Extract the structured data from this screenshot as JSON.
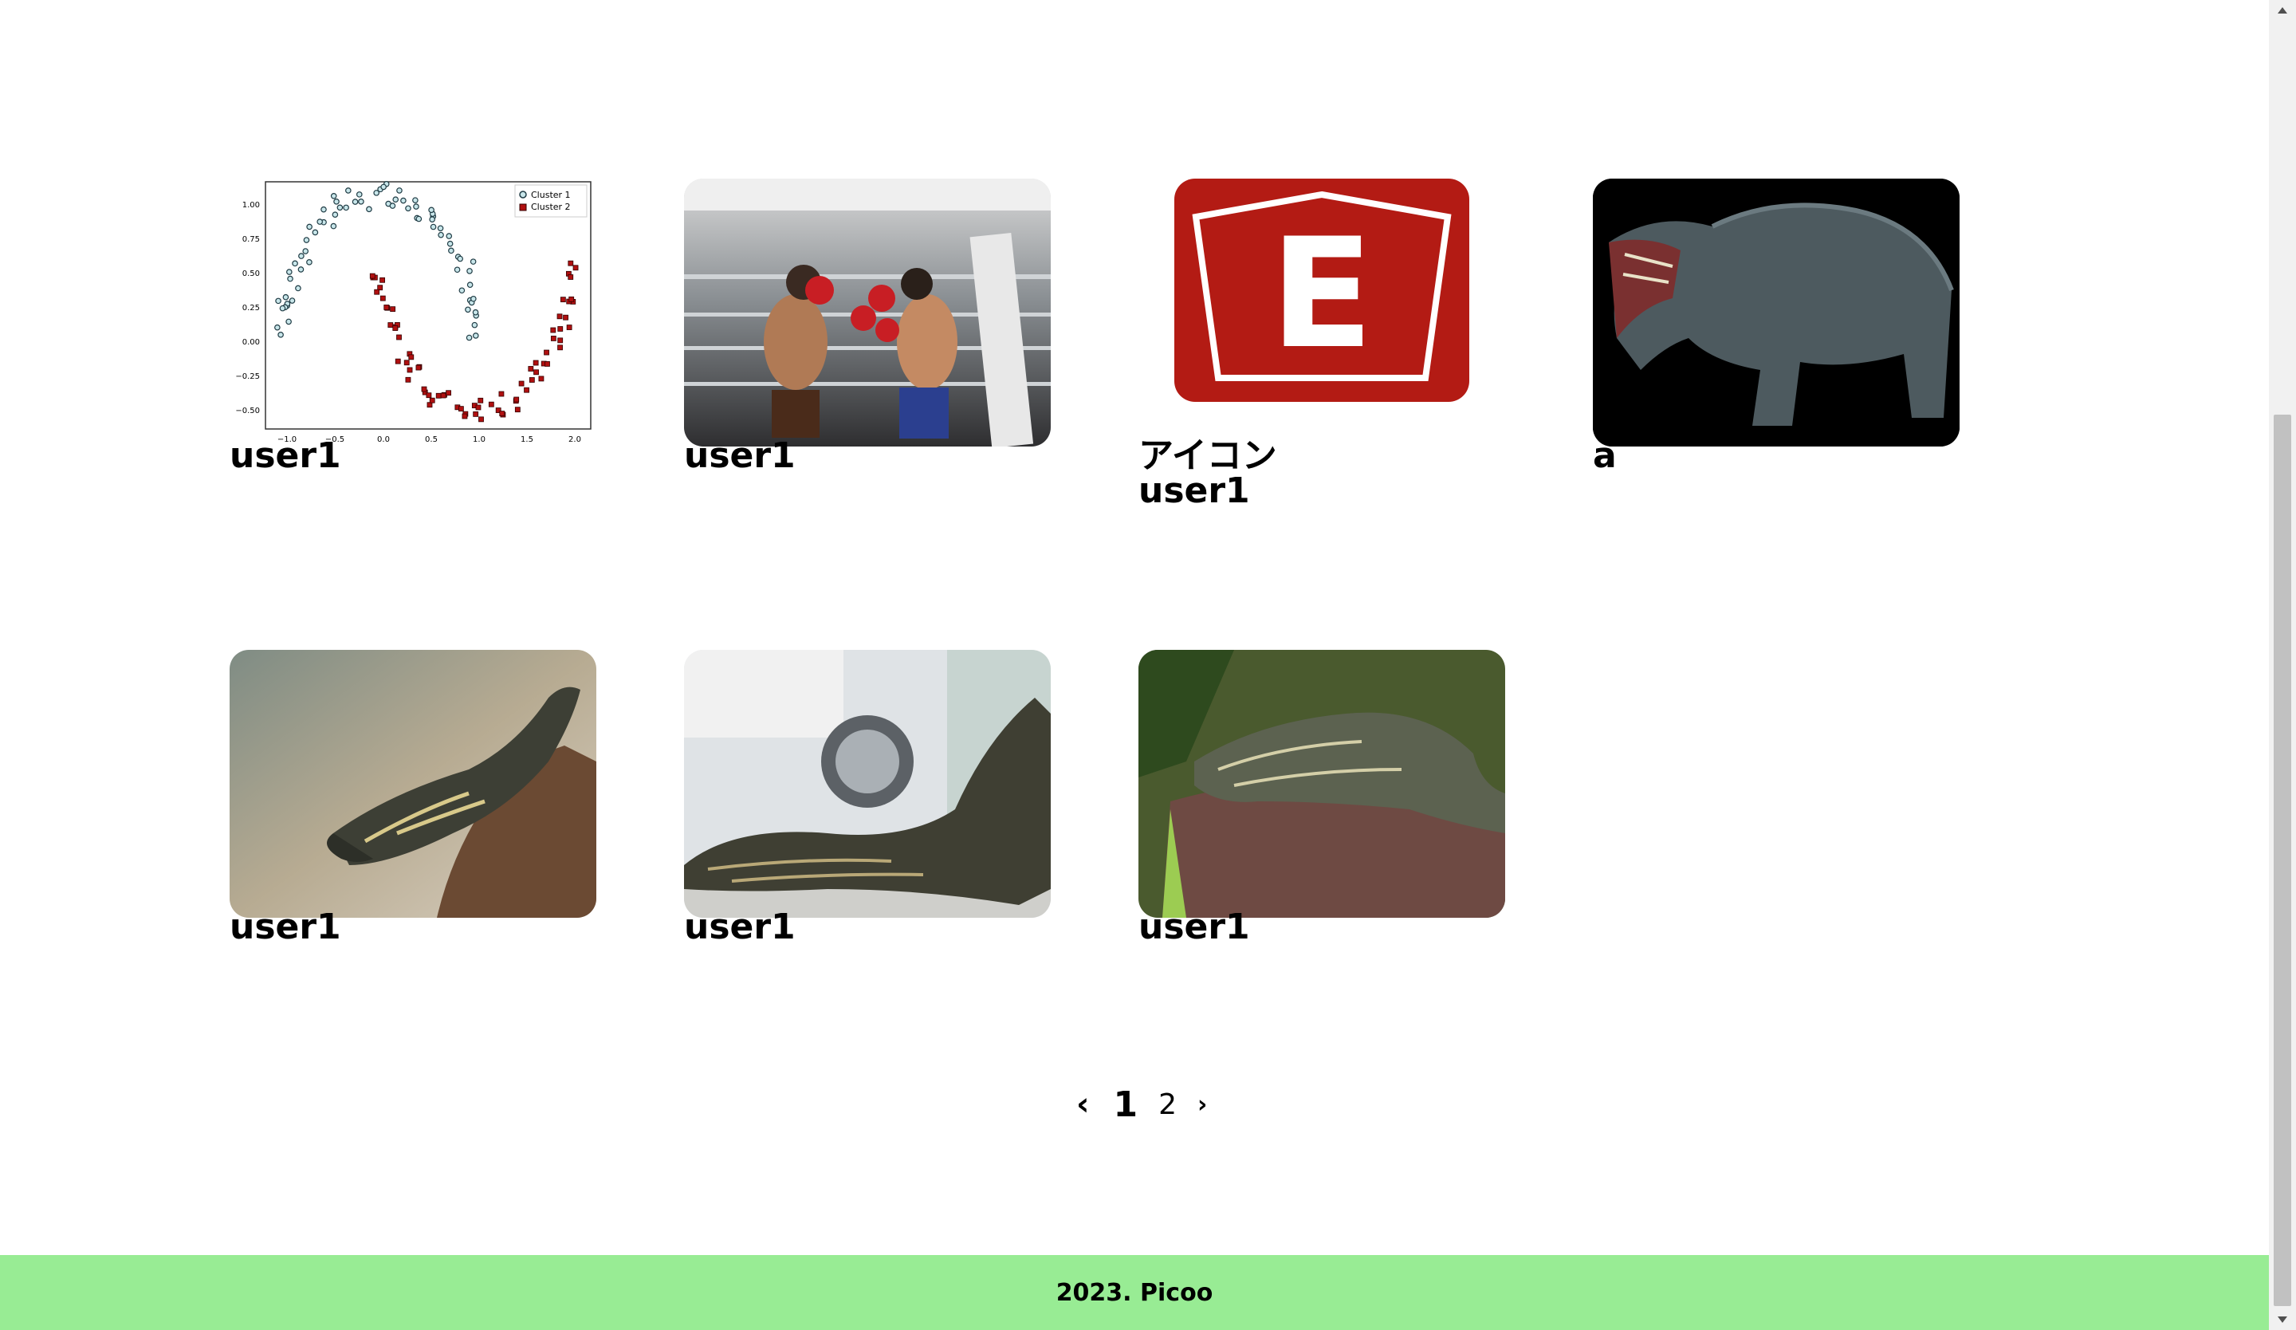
{
  "posts": [
    {
      "title": "user1",
      "subtitle": "",
      "image": "scatter-plot-clusters"
    },
    {
      "title": "user1",
      "subtitle": "",
      "image": "boxing-match"
    },
    {
      "title": "アイコン",
      "subtitle": "user1",
      "image": "red-pentagon-e-logo"
    },
    {
      "title": "a",
      "subtitle": "",
      "image": "crocodile-on-black"
    },
    {
      "title": "user1",
      "subtitle": "",
      "image": "monitor-lizard-on-branch"
    },
    {
      "title": "user1",
      "subtitle": "",
      "image": "monitor-lizard-indoors"
    },
    {
      "title": "user1",
      "subtitle": "",
      "image": "monitor-lizard-on-rock"
    }
  ],
  "thumbnail_chart": {
    "legend": [
      "Cluster 1",
      "Cluster 2"
    ],
    "y_ticks": [
      "1.00",
      "0.75",
      "0.50",
      "0.25",
      "0.00",
      "−0.25",
      "−0.50"
    ],
    "x_ticks": [
      "−1.0",
      "−0.5",
      "0.0",
      "0.5",
      "1.0",
      "1.5",
      "2.0"
    ]
  },
  "logo_letter": "E",
  "pagination": {
    "prev": "‹",
    "pages": [
      "1",
      "2"
    ],
    "current": "1",
    "next": "›"
  },
  "footer": {
    "text": "2023. Picoo",
    "background": "#98ec94"
  }
}
